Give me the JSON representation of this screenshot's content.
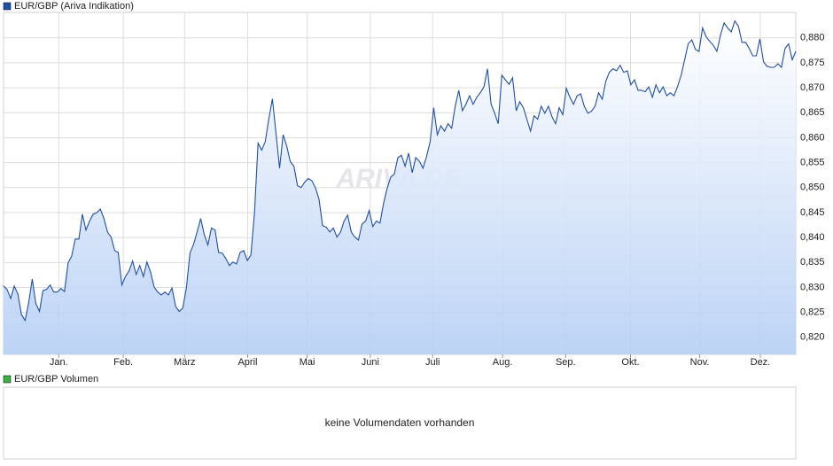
{
  "chart_data": {
    "type": "line",
    "watermark": "ARIVA.DE",
    "series": [
      {
        "name": "EUR/GBP (Ariva Indikation)",
        "color": "#1f4fa8",
        "values": [
          0.8303,
          0.8296,
          0.8278,
          0.8303,
          0.8287,
          0.8246,
          0.8234,
          0.8269,
          0.8317,
          0.8268,
          0.8252,
          0.8294,
          0.8296,
          0.8305,
          0.8291,
          0.8291,
          0.8298,
          0.8292,
          0.8349,
          0.8363,
          0.8397,
          0.8397,
          0.8447,
          0.8415,
          0.8433,
          0.8447,
          0.845,
          0.8457,
          0.8438,
          0.8411,
          0.8401,
          0.8374,
          0.837,
          0.8305,
          0.8322,
          0.8333,
          0.8353,
          0.8326,
          0.8344,
          0.8322,
          0.8351,
          0.8331,
          0.8301,
          0.8291,
          0.8285,
          0.8291,
          0.8285,
          0.8299,
          0.8262,
          0.8252,
          0.8259,
          0.8299,
          0.8369,
          0.8386,
          0.8411,
          0.8438,
          0.8406,
          0.8385,
          0.8419,
          0.8415,
          0.837,
          0.8369,
          0.8358,
          0.8344,
          0.8351,
          0.8347,
          0.837,
          0.8374,
          0.8354,
          0.8365,
          0.845,
          0.8589,
          0.8575,
          0.8592,
          0.8637,
          0.8678,
          0.861,
          0.8539,
          0.8606,
          0.8583,
          0.8552,
          0.8543,
          0.8504,
          0.85,
          0.8511,
          0.8518,
          0.8514,
          0.85,
          0.8477,
          0.8424,
          0.8421,
          0.8411,
          0.8419,
          0.8401,
          0.8411,
          0.8433,
          0.8445,
          0.8411,
          0.8401,
          0.8395,
          0.8427,
          0.8433,
          0.8454,
          0.8422,
          0.8433,
          0.8429,
          0.8468,
          0.8498,
          0.8521,
          0.8527,
          0.856,
          0.8565,
          0.8543,
          0.8569,
          0.853,
          0.856,
          0.8553,
          0.8539,
          0.8562,
          0.8592,
          0.866,
          0.8606,
          0.8624,
          0.8613,
          0.8628,
          0.8619,
          0.8663,
          0.8695,
          0.8654,
          0.8667,
          0.8684,
          0.8667,
          0.8681,
          0.869,
          0.8702,
          0.8738,
          0.8667,
          0.8649,
          0.8628,
          0.8725,
          0.8716,
          0.8707,
          0.872,
          0.8654,
          0.8672,
          0.866,
          0.8637,
          0.8613,
          0.8644,
          0.8637,
          0.8663,
          0.8649,
          0.8663,
          0.8642,
          0.8628,
          0.866,
          0.8646,
          0.8699,
          0.8681,
          0.8667,
          0.8684,
          0.8688,
          0.8663,
          0.8649,
          0.8653,
          0.8663,
          0.869,
          0.8677,
          0.8713,
          0.8731,
          0.8738,
          0.8734,
          0.8745,
          0.8731,
          0.8734,
          0.8706,
          0.8716,
          0.8695,
          0.8695,
          0.8692,
          0.8702,
          0.8681,
          0.8706,
          0.869,
          0.8702,
          0.8684,
          0.869,
          0.8684,
          0.8702,
          0.8725,
          0.8756,
          0.8788,
          0.8796,
          0.8777,
          0.8773,
          0.882,
          0.8802,
          0.8793,
          0.8785,
          0.8773,
          0.8805,
          0.883,
          0.882,
          0.8812,
          0.8834,
          0.8823,
          0.8791,
          0.8791,
          0.8779,
          0.8764,
          0.8764,
          0.8798,
          0.8752,
          0.8743,
          0.8741,
          0.8741,
          0.8748,
          0.8741,
          0.8779,
          0.8788,
          0.8756,
          0.8773
        ]
      }
    ],
    "xlim": [
      0,
      221
    ],
    "xticks": [
      {
        "value": 15.4,
        "label": "Jan."
      },
      {
        "value": 33.4,
        "label": "Feb."
      },
      {
        "value": 50.5,
        "label": "März"
      },
      {
        "value": 68.1,
        "label": "April"
      },
      {
        "value": 84.7,
        "label": "Mai"
      },
      {
        "value": 102.3,
        "label": "Juni"
      },
      {
        "value": 119.7,
        "label": "Juli"
      },
      {
        "value": 139.2,
        "label": "Aug."
      },
      {
        "value": 156.8,
        "label": "Sep."
      },
      {
        "value": 174.9,
        "label": "Okt."
      },
      {
        "value": 194.2,
        "label": "Nov."
      },
      {
        "value": 211.1,
        "label": "Dez."
      }
    ],
    "ylim": [
      0.8166,
      0.8851
    ],
    "yticks": [
      {
        "value": 0.82,
        "label": "0,820"
      },
      {
        "value": 0.825,
        "label": "0,825"
      },
      {
        "value": 0.83,
        "label": "0,830"
      },
      {
        "value": 0.835,
        "label": "0,835"
      },
      {
        "value": 0.84,
        "label": "0,840"
      },
      {
        "value": 0.845,
        "label": "0,845"
      },
      {
        "value": 0.85,
        "label": "0,850"
      },
      {
        "value": 0.855,
        "label": "0,855"
      },
      {
        "value": 0.86,
        "label": "0,860"
      },
      {
        "value": 0.865,
        "label": "0,865"
      },
      {
        "value": 0.87,
        "label": "0,870"
      },
      {
        "value": 0.875,
        "label": "0,875"
      },
      {
        "value": 0.88,
        "label": "0,880"
      }
    ],
    "grid": true,
    "volume_panel": {
      "title": "EUR/GBP Volumen",
      "color": "#3cb043",
      "message": "keine Volumendaten vorhanden"
    }
  }
}
